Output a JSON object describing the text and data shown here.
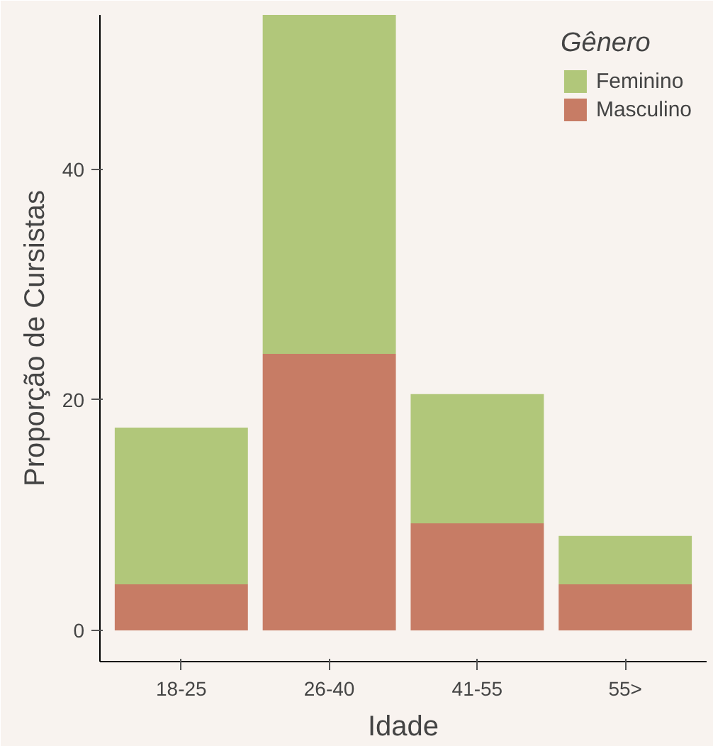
{
  "chart_data": {
    "type": "bar",
    "stacked": true,
    "xlabel": "Idade",
    "ylabel": "Proporção de Cursistas",
    "legend_title": "Gênero",
    "legend": "top right",
    "categories": [
      "18-25",
      "26-40",
      "41-55",
      "55>"
    ],
    "series": [
      {
        "name": "Masculino",
        "color": "#c77c65",
        "values": [
          4.0,
          24.0,
          9.3,
          4.0
        ]
      },
      {
        "name": "Feminino",
        "color": "#b1c77a",
        "values": [
          13.6,
          29.4,
          11.2,
          4.2
        ]
      }
    ],
    "ylim": [
      -2.7,
      53.4
    ],
    "yticks": [
      0,
      20,
      40
    ]
  }
}
